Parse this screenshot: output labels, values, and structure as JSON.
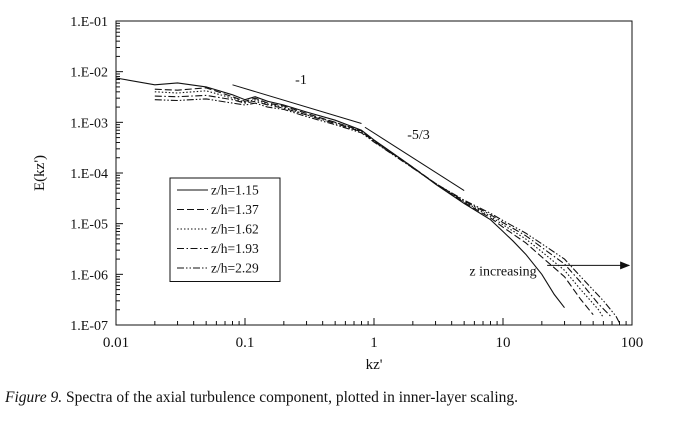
{
  "chart_data": {
    "type": "line",
    "scale": "log-log",
    "xlabel": "kz'",
    "ylabel": "E(kz')",
    "xlim": [
      0.01,
      100
    ],
    "ylim": [
      1e-07,
      0.1
    ],
    "x_tick_labels": [
      "0.01",
      "0.1",
      "1",
      "10",
      "100"
    ],
    "y_tick_labels": [
      "1.E-07",
      "1.E-06",
      "1.E-05",
      "1.E-04",
      "1.E-03",
      "1.E-02",
      "1.E-01"
    ],
    "grid": false,
    "legend": {
      "position": "lower-left",
      "boxed": true
    },
    "series": [
      {
        "name": "z/h=1.15",
        "style": "solid",
        "points": [
          [
            0.01,
            0.0075
          ],
          [
            0.02,
            0.0055
          ],
          [
            0.03,
            0.006
          ],
          [
            0.05,
            0.005
          ],
          [
            0.08,
            0.0035
          ],
          [
            0.1,
            0.0028
          ],
          [
            0.12,
            0.0032
          ],
          [
            0.15,
            0.0026
          ],
          [
            0.2,
            0.0022
          ],
          [
            0.3,
            0.0016
          ],
          [
            0.5,
            0.0011
          ],
          [
            0.8,
            0.0007
          ],
          [
            1,
            0.00045
          ],
          [
            2,
            0.00013
          ],
          [
            3,
            6e-05
          ],
          [
            5,
            2.5e-05
          ],
          [
            8,
            1.2e-05
          ],
          [
            10,
            7e-06
          ],
          [
            12,
            4.5e-06
          ],
          [
            15,
            2.5e-06
          ],
          [
            20,
            1e-06
          ],
          [
            25,
            4e-07
          ],
          [
            30,
            2.2e-07
          ]
        ]
      },
      {
        "name": "z/h=1.37",
        "style": "dashed",
        "points": [
          [
            0.02,
            0.0045
          ],
          [
            0.03,
            0.0043
          ],
          [
            0.05,
            0.0048
          ],
          [
            0.08,
            0.0032
          ],
          [
            0.1,
            0.0026
          ],
          [
            0.12,
            0.003
          ],
          [
            0.15,
            0.0024
          ],
          [
            0.2,
            0.0021
          ],
          [
            0.3,
            0.0015
          ],
          [
            0.5,
            0.001
          ],
          [
            0.8,
            0.00068
          ],
          [
            1,
            0.00044
          ],
          [
            2,
            0.00013
          ],
          [
            3,
            6.2e-05
          ],
          [
            5,
            2.6e-05
          ],
          [
            8,
            1.3e-05
          ],
          [
            10,
            8.5e-06
          ],
          [
            15,
            4.2e-06
          ],
          [
            20,
            2.2e-06
          ],
          [
            30,
            9e-07
          ],
          [
            40,
            3.2e-07
          ],
          [
            50,
            1.6e-07
          ]
        ]
      },
      {
        "name": "z/h=1.62",
        "style": "dotted",
        "points": [
          [
            0.02,
            0.004
          ],
          [
            0.03,
            0.0038
          ],
          [
            0.05,
            0.0042
          ],
          [
            0.08,
            0.003
          ],
          [
            0.1,
            0.0025
          ],
          [
            0.12,
            0.0028
          ],
          [
            0.15,
            0.0023
          ],
          [
            0.2,
            0.002
          ],
          [
            0.3,
            0.0014
          ],
          [
            0.5,
            0.001
          ],
          [
            0.8,
            0.00066
          ],
          [
            1,
            0.00043
          ],
          [
            2,
            0.000128
          ],
          [
            3,
            6.2e-05
          ],
          [
            5,
            2.7e-05
          ],
          [
            8,
            1.4e-05
          ],
          [
            10,
            9.5e-06
          ],
          [
            15,
            5e-06
          ],
          [
            20,
            2.8e-06
          ],
          [
            30,
            1.2e-06
          ],
          [
            40,
            5e-07
          ],
          [
            55,
            2e-07
          ],
          [
            60,
            1.4e-07
          ]
        ]
      },
      {
        "name": "z/h=1.93",
        "style": "dash-dot",
        "points": [
          [
            0.02,
            0.0033
          ],
          [
            0.03,
            0.0032
          ],
          [
            0.05,
            0.0034
          ],
          [
            0.08,
            0.0028
          ],
          [
            0.1,
            0.0024
          ],
          [
            0.12,
            0.0026
          ],
          [
            0.15,
            0.0022
          ],
          [
            0.2,
            0.0019
          ],
          [
            0.3,
            0.0014
          ],
          [
            0.5,
            0.00095
          ],
          [
            0.8,
            0.00065
          ],
          [
            1,
            0.00042
          ],
          [
            2,
            0.000126
          ],
          [
            3,
            6.2e-05
          ],
          [
            5,
            2.8e-05
          ],
          [
            8,
            1.5e-05
          ],
          [
            10,
            1.05e-05
          ],
          [
            15,
            5.8e-06
          ],
          [
            20,
            3.4e-06
          ],
          [
            30,
            1.6e-06
          ],
          [
            40,
            7e-07
          ],
          [
            55,
            2.6e-07
          ],
          [
            70,
            1.4e-07
          ]
        ]
      },
      {
        "name": "z/h=2.29",
        "style": "dash-dot-dot",
        "points": [
          [
            0.02,
            0.0028
          ],
          [
            0.03,
            0.0027
          ],
          [
            0.05,
            0.0029
          ],
          [
            0.08,
            0.0024
          ],
          [
            0.1,
            0.0022
          ],
          [
            0.12,
            0.0024
          ],
          [
            0.15,
            0.002
          ],
          [
            0.2,
            0.0018
          ],
          [
            0.3,
            0.0013
          ],
          [
            0.5,
            0.0009
          ],
          [
            0.8,
            0.00062
          ],
          [
            1,
            0.00041
          ],
          [
            2,
            0.000125
          ],
          [
            3,
            6.2e-05
          ],
          [
            5,
            2.9e-05
          ],
          [
            8,
            1.6e-05
          ],
          [
            10,
            1.15e-05
          ],
          [
            15,
            6.5e-06
          ],
          [
            20,
            4e-06
          ],
          [
            30,
            2e-06
          ],
          [
            40,
            9e-07
          ],
          [
            60,
            3e-07
          ],
          [
            75,
            1.5e-07
          ],
          [
            80,
            1.1e-07
          ]
        ]
      }
    ],
    "reference_lines": [
      {
        "label": "-1",
        "from": [
          0.08,
          0.0055
        ],
        "to": [
          0.8,
          0.00095
        ]
      },
      {
        "label": "-5/3",
        "from": [
          0.85,
          0.0008
        ],
        "to": [
          5,
          4.5e-05
        ]
      }
    ],
    "annotations": [
      {
        "text": "z increasing",
        "at": [
          10,
          1.2e-06
        ],
        "arrow_from": [
          22,
          1.5e-06
        ],
        "arrow_to": [
          95,
          1.5e-06
        ]
      }
    ]
  },
  "caption": {
    "figure_label": "Figure 9.",
    "text": "Spectra of the axial turbulence component, plotted in inner-layer scaling."
  }
}
